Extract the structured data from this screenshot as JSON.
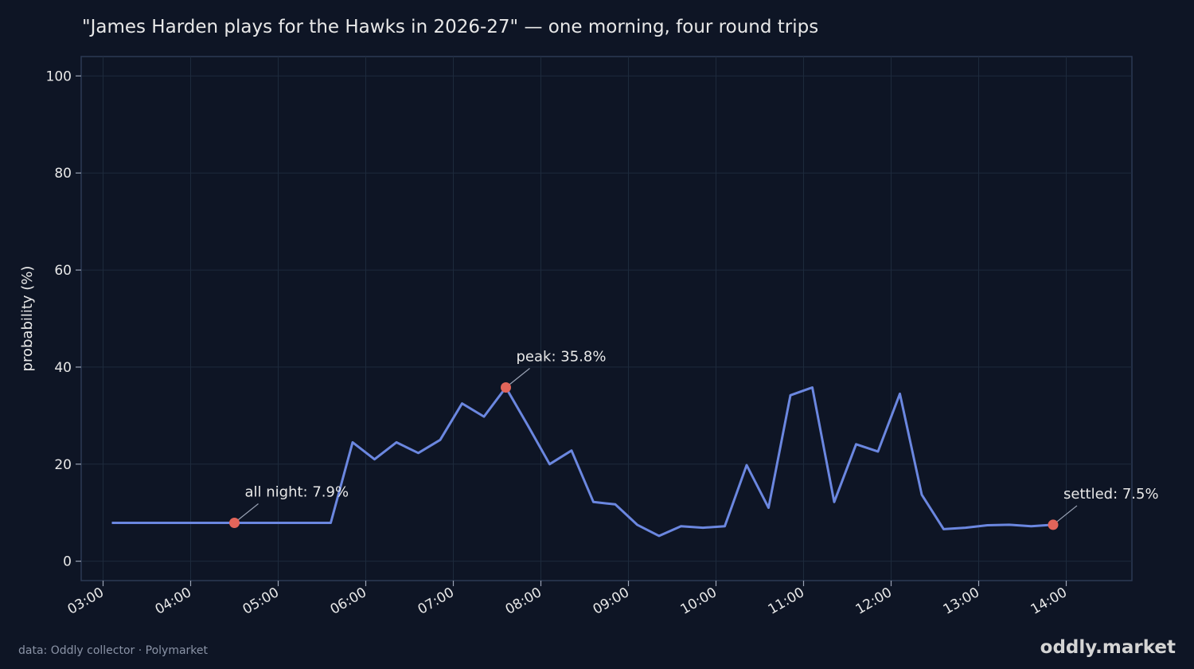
{
  "footer": {
    "source": "data: Oddly collector · Polymarket",
    "brand": "oddly.market"
  },
  "colors": {
    "background": "#0e1525",
    "line": "#6b87e0",
    "marker": "#e2655a",
    "grid": "#1d2a3c",
    "frame": "#2c3a55",
    "text": "#e8e8e8"
  },
  "chart_data": {
    "type": "line",
    "title": "\"James Harden plays for the Hawks in 2026-27\" — one morning, four round trips",
    "xlabel": "",
    "ylabel": "probability (%)",
    "ylim": [
      -4,
      104
    ],
    "yticks": [
      0,
      20,
      40,
      60,
      80,
      100
    ],
    "xlim": [
      "02:45",
      "14:45"
    ],
    "xticks": [
      "03:00",
      "04:00",
      "05:00",
      "06:00",
      "07:00",
      "08:00",
      "09:00",
      "10:00",
      "11:00",
      "12:00",
      "13:00",
      "14:00"
    ],
    "grid": true,
    "series": [
      {
        "x": [
          "03:06",
          "03:21",
          "03:36",
          "03:51",
          "04:06",
          "04:21",
          "04:36",
          "04:51",
          "05:06",
          "05:21",
          "05:36",
          "05:51",
          "06:06",
          "06:21",
          "06:36",
          "06:51",
          "07:06",
          "07:21",
          "07:36",
          "07:51",
          "08:06",
          "08:21",
          "08:36",
          "08:51",
          "09:06",
          "09:21",
          "09:36",
          "09:51",
          "10:06",
          "10:21",
          "10:36",
          "10:51",
          "11:06",
          "11:21",
          "11:36",
          "11:51",
          "12:06",
          "12:21",
          "12:36",
          "12:51",
          "13:06",
          "13:21",
          "13:36",
          "13:51"
        ],
        "values": [
          7.9,
          7.9,
          7.9,
          7.9,
          7.9,
          7.9,
          7.9,
          7.9,
          7.9,
          7.9,
          7.9,
          24.5,
          21.0,
          24.5,
          22.3,
          25.0,
          32.5,
          29.8,
          35.8,
          28.0,
          20.0,
          22.8,
          12.2,
          11.7,
          7.5,
          5.2,
          7.2,
          6.9,
          7.2,
          19.8,
          11.0,
          34.2,
          35.8,
          12.2,
          24.1,
          22.6,
          34.5,
          13.7,
          6.6,
          6.9,
          7.4,
          7.5,
          7.2,
          7.5
        ]
      }
    ],
    "annotations": [
      {
        "text": "all night: 7.9%",
        "x": "04:30",
        "y": 7.9
      },
      {
        "text": "peak: 35.8%",
        "x": "07:36",
        "y": 35.8
      },
      {
        "text": "settled: 7.5%",
        "x": "13:51",
        "y": 7.5
      }
    ]
  }
}
